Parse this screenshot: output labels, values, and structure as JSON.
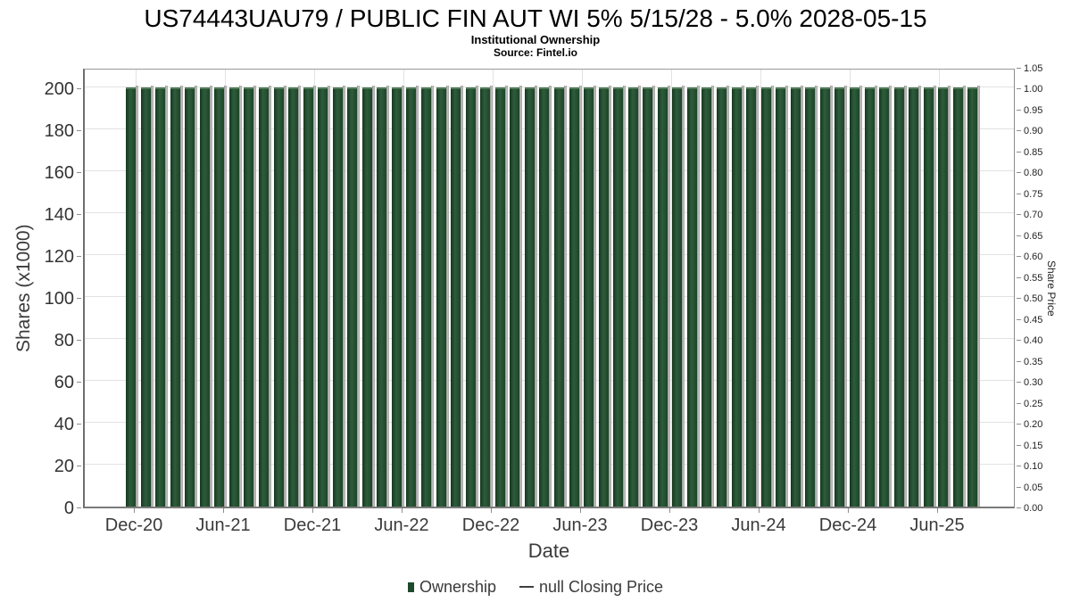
{
  "header": {
    "title": "US74443UAU79 / PUBLIC FIN AUT WI 5% 5/15/28 - 5.0% 2028-05-15",
    "subtitle": "Institutional Ownership",
    "source": "Source: Fintel.io"
  },
  "chart_data": {
    "type": "bar",
    "title": "US74443UAU79 / PUBLIC FIN AUT WI 5% 5/15/28 - 5.0% 2028-05-15",
    "subtitle": "Institutional Ownership",
    "source": "Source: Fintel.io",
    "xlabel": "Date",
    "ylabel_left": "Shares (x1000)",
    "ylabel_right": "Share Price",
    "ylim_left": [
      0,
      210
    ],
    "ylim_right": [
      0,
      1.05
    ],
    "yticks_left": [
      0,
      20,
      40,
      60,
      80,
      100,
      120,
      140,
      160,
      180,
      200
    ],
    "yticks_right": [
      "0.00",
      "0.05",
      "0.10",
      "0.15",
      "0.20",
      "0.25",
      "0.30",
      "0.35",
      "0.40",
      "0.45",
      "0.50",
      "0.55",
      "0.60",
      "0.65",
      "0.70",
      "0.75",
      "0.80",
      "0.85",
      "0.90",
      "0.95",
      "1.00",
      "1.05"
    ],
    "xtick_labels": [
      "Dec-20",
      "Jun-21",
      "Dec-21",
      "Jun-22",
      "Dec-22",
      "Jun-23",
      "Dec-23",
      "Jun-24",
      "Dec-24",
      "Jun-25"
    ],
    "grid": true,
    "legend_position": "bottom",
    "categories": [
      "Dec-20",
      "Jan-21",
      "Feb-21",
      "Mar-21",
      "Apr-21",
      "May-21",
      "Jun-21",
      "Jul-21",
      "Aug-21",
      "Sep-21",
      "Oct-21",
      "Nov-21",
      "Dec-21",
      "Jan-22",
      "Feb-22",
      "Mar-22",
      "Apr-22",
      "May-22",
      "Jun-22",
      "Jul-22",
      "Aug-22",
      "Sep-22",
      "Oct-22",
      "Nov-22",
      "Dec-22",
      "Jan-23",
      "Feb-23",
      "Mar-23",
      "Apr-23",
      "May-23",
      "Jun-23",
      "Jul-23",
      "Aug-23",
      "Sep-23",
      "Oct-23",
      "Nov-23",
      "Dec-23",
      "Jan-24",
      "Feb-24",
      "Mar-24",
      "Apr-24",
      "May-24",
      "Jun-24",
      "Jul-24",
      "Aug-24",
      "Sep-24",
      "Oct-24",
      "Nov-24",
      "Dec-24",
      "Jan-25",
      "Feb-25",
      "Mar-25",
      "Apr-25",
      "May-25",
      "Jun-25",
      "Jul-25",
      "Aug-25",
      "Sep-25"
    ],
    "series": [
      {
        "name": "Ownership",
        "type": "bar",
        "color": "#1e4a2b",
        "values": [
          200,
          200,
          200,
          200,
          200,
          200,
          200,
          200,
          200,
          200,
          200,
          200,
          200,
          200,
          200,
          200,
          200,
          200,
          200,
          200,
          200,
          200,
          200,
          200,
          200,
          200,
          200,
          200,
          200,
          200,
          200,
          200,
          200,
          200,
          200,
          200,
          200,
          200,
          200,
          200,
          200,
          200,
          200,
          200,
          200,
          200,
          200,
          200,
          200,
          200,
          200,
          200,
          200,
          200,
          200,
          200,
          200,
          200
        ]
      },
      {
        "name": "null Closing Price",
        "type": "line",
        "color": "#3f3f3f",
        "values": []
      }
    ],
    "colors": {
      "bar": "#1e4a2b",
      "bar_top": "#4d7a55",
      "bar_side": "#9a9a9a",
      "grid": "#e2e2e2",
      "axis": "#6e6e6e",
      "tick_text": "#3a3a3a"
    }
  },
  "legend": {
    "items": [
      {
        "label": "Ownership",
        "marker": "square",
        "color": "#1e4a2b"
      },
      {
        "label": "null Closing Price",
        "marker": "line",
        "color": "#3f3f3f"
      }
    ]
  }
}
